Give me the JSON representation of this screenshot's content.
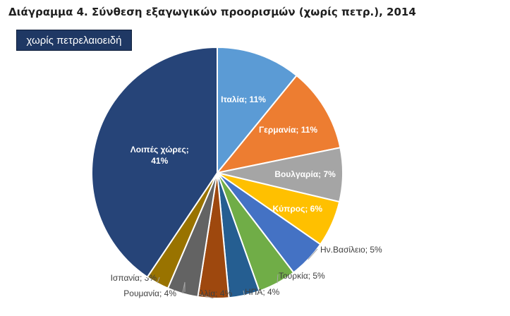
{
  "chart_data": {
    "type": "pie",
    "title": "Διάγραμμα 4. Σύνθεση εξαγωγικών προορισμών (χωρίς πετρ.), 2014",
    "subtitle": "χωρίς πετρελαιοειδή",
    "slices": [
      {
        "label": "Ιταλία; 11%",
        "value": 11,
        "color": "#5b9bd5"
      },
      {
        "label": "Γερμανία; 11%",
        "value": 11,
        "color": "#ed7d31"
      },
      {
        "label": "Βουλγαρία; 7%",
        "value": 7,
        "color": "#a5a5a5"
      },
      {
        "label": "Κύπρος; 6%",
        "value": 6,
        "color": "#ffc000"
      },
      {
        "label": "Ην.Βασίλειο; 5%",
        "value": 5,
        "color": "#4472c4"
      },
      {
        "label": "Τουρκία; 5%",
        "value": 5,
        "color": "#70ad47"
      },
      {
        "label": "ΗΠΑ; 4%",
        "value": 4,
        "color": "#255e91"
      },
      {
        "label": "Γαλλία; 4%",
        "value": 4,
        "color": "#9e480e"
      },
      {
        "label": "Ρουμανία; 4%",
        "value": 4,
        "color": "#636363"
      },
      {
        "label": "Ισπανία; 3%",
        "value": 3,
        "color": "#997300"
      },
      {
        "label": "Λοιπές χώρες;",
        "label2": "41%",
        "value": 41,
        "color": "#264478"
      }
    ]
  }
}
